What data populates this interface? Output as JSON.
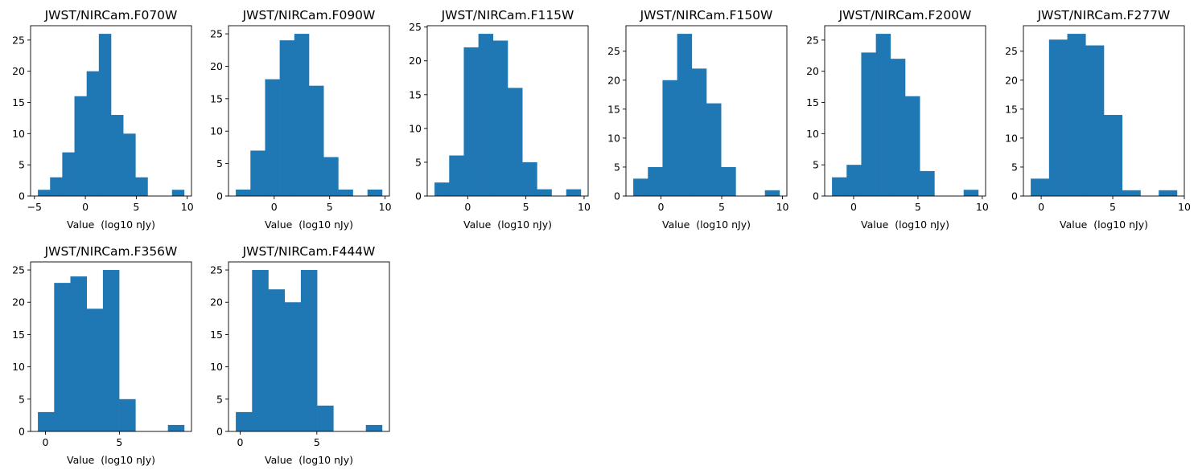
{
  "chart_data": [
    {
      "type": "bar",
      "title": "JWST/NIRCam.F070W",
      "xlabel": "Value  (log10 nJy)",
      "ylabel": "",
      "bin_range": [
        -4.66,
        9.7
      ],
      "counts": [
        1,
        3,
        7,
        16,
        20,
        26,
        13,
        10,
        3,
        0,
        0,
        1
      ],
      "xticks": [
        -5,
        0,
        5,
        10
      ],
      "yticks": [
        0,
        5,
        10,
        15,
        20,
        25
      ],
      "ylim": [
        0,
        27.3
      ],
      "color": "#1f77b4"
    },
    {
      "type": "bar",
      "title": "JWST/NIRCam.F090W",
      "xlabel": "Value  (log10 nJy)",
      "ylabel": "",
      "bin_range": [
        -3.46,
        9.73
      ],
      "counts": [
        1,
        7,
        18,
        24,
        25,
        17,
        6,
        1,
        0,
        1
      ],
      "xticks": [
        0,
        5,
        10
      ],
      "yticks": [
        0,
        5,
        10,
        15,
        20,
        25
      ],
      "ylim": [
        0,
        26.25
      ],
      "color": "#1f77b4"
    },
    {
      "type": "bar",
      "title": "JWST/NIRCam.F115W",
      "xlabel": "Value  (log10 nJy)",
      "ylabel": "",
      "bin_range": [
        -2.85,
        9.72
      ],
      "counts": [
        2,
        6,
        22,
        24,
        23,
        16,
        5,
        1,
        0,
        1
      ],
      "xticks": [
        0,
        5,
        10
      ],
      "yticks": [
        0,
        5,
        10,
        15,
        20,
        25
      ],
      "ylim": [
        0,
        25.2
      ],
      "color": "#1f77b4"
    },
    {
      "type": "bar",
      "title": "JWST/NIRCam.F150W",
      "xlabel": "Value  (log10 nJy)",
      "ylabel": "",
      "bin_range": [
        -2.28,
        9.76
      ],
      "counts": [
        3,
        5,
        20,
        28,
        22,
        16,
        5,
        0,
        0,
        1
      ],
      "xticks": [
        0,
        5,
        10
      ],
      "yticks": [
        0,
        5,
        10,
        15,
        20,
        25
      ],
      "ylim": [
        0,
        29.4
      ],
      "color": "#1f77b4"
    },
    {
      "type": "bar",
      "title": "JWST/NIRCam.F200W",
      "xlabel": "Value  (log10 nJy)",
      "ylabel": "",
      "bin_range": [
        -1.68,
        9.69
      ],
      "counts": [
        3,
        5,
        23,
        26,
        22,
        16,
        4,
        0,
        0,
        1
      ],
      "xticks": [
        0,
        5,
        10
      ],
      "yticks": [
        0,
        5,
        10,
        15,
        20,
        25
      ],
      "ylim": [
        0,
        27.3
      ],
      "color": "#1f77b4"
    },
    {
      "type": "bar",
      "title": "JWST/NIRCam.F277W",
      "xlabel": "Value  (log10 nJy)",
      "ylabel": "",
      "bin_range": [
        -0.73,
        9.49
      ],
      "counts": [
        3,
        27,
        28,
        26,
        14,
        1,
        0,
        1
      ],
      "xticks": [
        0,
        5,
        10
      ],
      "yticks": [
        0,
        5,
        10,
        15,
        20,
        25
      ],
      "ylim": [
        0,
        29.4
      ],
      "color": "#1f77b4"
    },
    {
      "type": "bar",
      "title": "JWST/NIRCam.F356W",
      "xlabel": "Value  (log10 nJy)",
      "ylabel": "",
      "bin_range": [
        -0.51,
        9.38
      ],
      "counts": [
        3,
        23,
        24,
        19,
        25,
        5,
        0,
        0,
        1
      ],
      "xticks": [
        0,
        5
      ],
      "yticks": [
        0,
        5,
        10,
        15,
        20,
        25
      ],
      "ylim": [
        0,
        26.25
      ],
      "color": "#1f77b4"
    },
    {
      "type": "bar",
      "title": "JWST/NIRCam.F444W",
      "xlabel": "Value  (log10 nJy)",
      "ylabel": "",
      "bin_range": [
        -0.28,
        9.25
      ],
      "counts": [
        3,
        25,
        22,
        20,
        25,
        4,
        0,
        0,
        1
      ],
      "xticks": [
        0,
        5
      ],
      "yticks": [
        0,
        5,
        10,
        15,
        20,
        25
      ],
      "ylim": [
        0,
        26.25
      ],
      "color": "#1f77b4"
    }
  ]
}
